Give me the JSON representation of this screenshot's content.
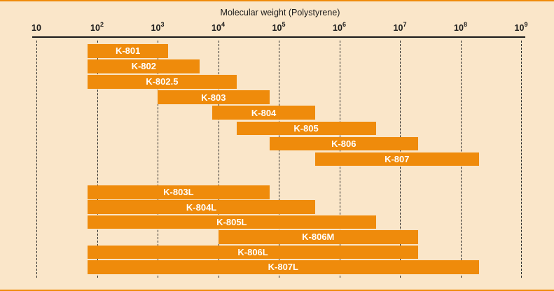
{
  "figure": {
    "background_color": "#fae6c9",
    "frame_color": "#ef8b0b"
  },
  "chart_data": {
    "type": "bar",
    "subtype": "horizontal-range-bars",
    "title": "Molecular weight (Polystyrene)",
    "x_axis": {
      "scale": "log10",
      "min": 10,
      "max": 1000000000,
      "tick_base": "10",
      "tick_exponents": [
        1,
        2,
        3,
        4,
        5,
        6,
        7,
        8,
        9
      ],
      "gridlines": "dashed-vertical-per-decade"
    },
    "bar_color": "#ef8b0b",
    "bar_label_color": "#ffffff",
    "axis_color": "#1a1a1a",
    "groups": [
      {
        "rows": [
          {
            "label": "K-801",
            "range": [
              70,
              1500
            ]
          },
          {
            "label": "K-802",
            "range": [
              70,
              5000
            ]
          },
          {
            "label": "K-802.5",
            "range": [
              70,
              20000
            ]
          },
          {
            "label": "K-803",
            "range": [
              1000,
              70000
            ]
          },
          {
            "label": "K-804",
            "range": [
              8000,
              400000
            ]
          },
          {
            "label": "K-805",
            "range": [
              20000,
              4000000
            ]
          },
          {
            "label": "K-806",
            "range": [
              70000,
              20000000
            ]
          },
          {
            "label": "K-807",
            "range": [
              400000,
              200000000
            ]
          }
        ]
      },
      {
        "rows": [
          {
            "label": "K-803L",
            "range": [
              70,
              70000
            ]
          },
          {
            "label": "K-804L",
            "range": [
              70,
              400000
            ]
          },
          {
            "label": "K-805L",
            "range": [
              70,
              4000000
            ]
          },
          {
            "label": "K-806M",
            "range": [
              10000,
              20000000
            ]
          },
          {
            "label": "K-806L",
            "range": [
              70,
              20000000
            ]
          },
          {
            "label": "K-807L",
            "range": [
              70,
              200000000
            ]
          }
        ]
      }
    ]
  }
}
